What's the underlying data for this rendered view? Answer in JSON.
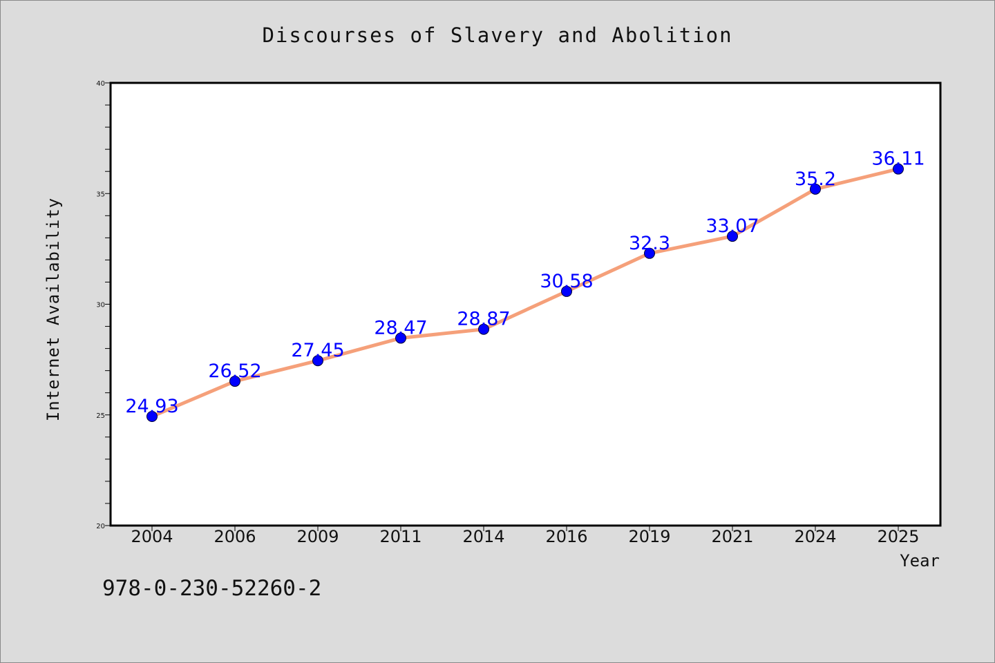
{
  "page": {
    "title": "Discourses of Slavery and Abolition",
    "footer_code": "978-0-230-52260-2"
  },
  "colors": {
    "background": "#dcdcdc",
    "plot_bg": "#ffffff",
    "line": "#f5a07a",
    "marker": "#0000ff",
    "label": "#0000ff"
  },
  "chart_data": {
    "type": "line",
    "title": "Discourses of Slavery and Abolition",
    "xlabel": "Year",
    "ylabel": "Internet Availability",
    "categories": [
      "2004",
      "2006",
      "2009",
      "2011",
      "2014",
      "2016",
      "2019",
      "2021",
      "2024",
      "2025"
    ],
    "series": [
      {
        "values": [
          24.93,
          26.52,
          27.45,
          28.47,
          28.87,
          30.58,
          32.3,
          33.07,
          35.2,
          36.11
        ]
      }
    ],
    "data_labels": [
      "24.93",
      "26.52",
      "27.45",
      "28.47",
      "28.87",
      "30.58",
      "32.3",
      "33.07",
      "35.2",
      "36.11"
    ],
    "ylim": [
      20,
      40
    ],
    "yticks": [
      20,
      25,
      30,
      35,
      40
    ],
    "grid": false,
    "legend": "none"
  }
}
